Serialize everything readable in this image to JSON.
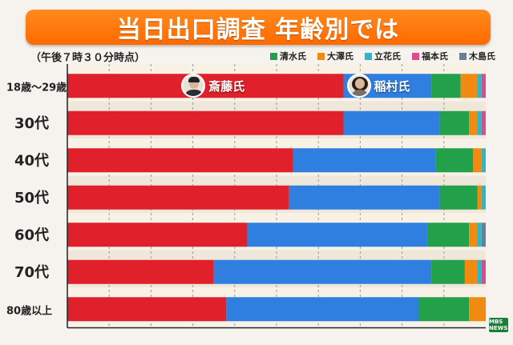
{
  "title": "当日出口調査 年齢別では",
  "subtitle": "（午後７時３０分時点）",
  "colors": {
    "saito": "#e0202a",
    "inamura": "#2f7fe0",
    "shimizu": "#22a04a",
    "osawa": "#f08a10",
    "tachibana": "#2ab8c8",
    "fukumoto": "#e04a8a",
    "kinoshita": "#6a7f95",
    "other": "#c8c8c8"
  },
  "legend": [
    {
      "label": "清水氏",
      "color": "#22a04a"
    },
    {
      "label": "大澤氏",
      "color": "#f08a10"
    },
    {
      "label": "立花氏",
      "color": "#2ab8c8"
    },
    {
      "label": "福本氏",
      "color": "#e04a8a"
    },
    {
      "label": "木島氏",
      "color": "#6a7f95"
    }
  ],
  "labels": {
    "saito": "斎藤氏",
    "inamura": "稲村氏"
  },
  "logo": "MBS NEWS",
  "chart_data": {
    "type": "bar",
    "stacked": true,
    "orientation": "horizontal",
    "unit": "percent",
    "categories": [
      "18歳〜29歳",
      "30代",
      "40代",
      "50代",
      "60代",
      "70代",
      "80歳以上"
    ],
    "series": [
      {
        "name": "斎藤氏",
        "key": "saito",
        "values": [
          66,
          66,
          54,
          53,
          43,
          35,
          38
        ]
      },
      {
        "name": "稲村氏",
        "key": "inamura",
        "values": [
          21,
          23,
          34,
          36,
          43,
          52,
          46
        ]
      },
      {
        "name": "清水氏",
        "key": "shimizu",
        "values": [
          7,
          7,
          9,
          9,
          10,
          8,
          12
        ]
      },
      {
        "name": "大澤氏",
        "key": "osawa",
        "values": [
          4,
          2,
          2,
          1,
          2,
          3,
          4
        ]
      },
      {
        "name": "立花氏",
        "key": "tachibana",
        "values": [
          1,
          1,
          1,
          1,
          1,
          1,
          0
        ]
      },
      {
        "name": "福本氏",
        "key": "fukumoto",
        "values": [
          1,
          1,
          0,
          0,
          0,
          1,
          0
        ]
      },
      {
        "name": "木島氏",
        "key": "kinoshita",
        "values": [
          0,
          0,
          0,
          0,
          1,
          0,
          0
        ]
      }
    ],
    "xlim": [
      0,
      100
    ],
    "grid": true,
    "legend_position": "top-right"
  }
}
